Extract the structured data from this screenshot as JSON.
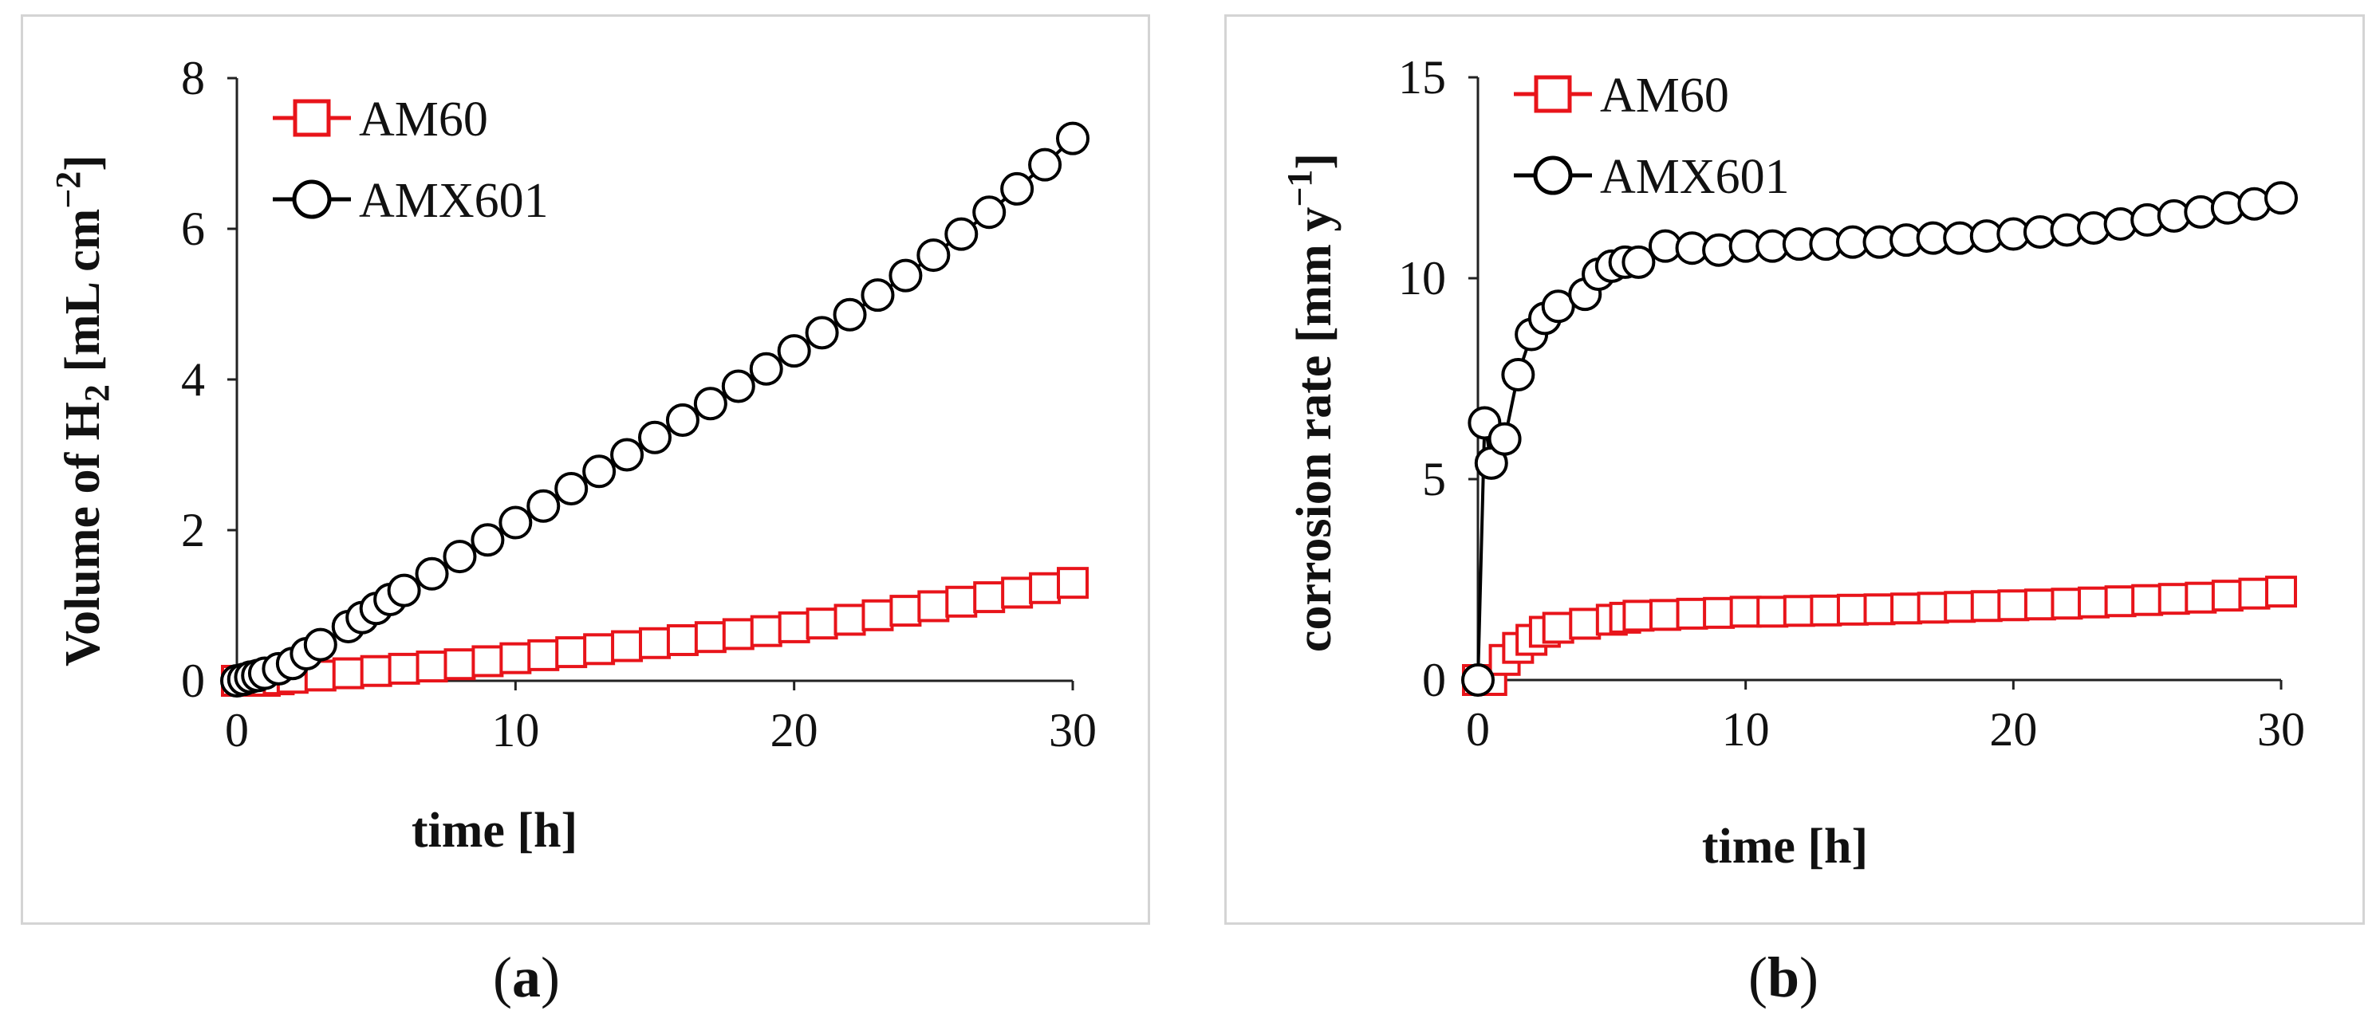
{
  "panels": [
    {
      "label_open": "(",
      "label_letter": "a",
      "label_close": ")"
    },
    {
      "label_open": "(",
      "label_letter": "b",
      "label_close": ")"
    }
  ],
  "colors": {
    "AM60": "#e8141a",
    "AMX601": "#000000",
    "axis": "#222222",
    "frame": "#d4d4d4"
  },
  "chart_data": [
    {
      "type": "scatter",
      "title": "",
      "xlabel": "time [h]",
      "ylabel_parts": [
        "Volume of H",
        "2",
        " [mL cm",
        "−2",
        "]"
      ],
      "xlim": [
        0,
        30
      ],
      "ylim": [
        0,
        8
      ],
      "xticks": [
        0,
        10,
        20,
        30
      ],
      "yticks": [
        0,
        2,
        4,
        6,
        8
      ],
      "legend": "top-left",
      "series": [
        {
          "name": "AM60",
          "marker": "square",
          "x": [
            0,
            0.5,
            1,
            1.5,
            2,
            3,
            4,
            5,
            6,
            7,
            8,
            9,
            10,
            11,
            12,
            13,
            14,
            15,
            16,
            17,
            18,
            19,
            20,
            21,
            22,
            23,
            24,
            25,
            26,
            27,
            28,
            29,
            30
          ],
          "y": [
            0,
            0,
            0,
            0.02,
            0.04,
            0.07,
            0.1,
            0.13,
            0.16,
            0.19,
            0.22,
            0.26,
            0.3,
            0.34,
            0.38,
            0.42,
            0.46,
            0.5,
            0.54,
            0.58,
            0.62,
            0.66,
            0.71,
            0.76,
            0.81,
            0.87,
            0.93,
            0.99,
            1.05,
            1.11,
            1.17,
            1.23,
            1.3
          ]
        },
        {
          "name": "AMX601",
          "marker": "circle",
          "x": [
            0,
            0.25,
            0.5,
            0.75,
            1,
            1.5,
            2,
            2.5,
            3,
            4,
            4.5,
            5,
            5.5,
            6,
            7,
            8,
            9,
            10,
            11,
            12,
            13,
            14,
            15,
            16,
            17,
            18,
            19,
            20,
            21,
            22,
            23,
            24,
            25,
            26,
            27,
            28,
            29,
            30
          ],
          "y": [
            0,
            0.02,
            0.05,
            0.07,
            0.1,
            0.16,
            0.23,
            0.36,
            0.48,
            0.72,
            0.84,
            0.96,
            1.08,
            1.2,
            1.42,
            1.65,
            1.87,
            2.1,
            2.32,
            2.55,
            2.78,
            3.0,
            3.23,
            3.46,
            3.68,
            3.91,
            4.14,
            4.38,
            4.62,
            4.86,
            5.12,
            5.38,
            5.65,
            5.93,
            6.22,
            6.53,
            6.85,
            7.2
          ]
        }
      ]
    },
    {
      "type": "line",
      "title": "",
      "xlabel": "time [h]",
      "ylabel_parts": [
        "corrosion rate [mm y",
        "−1",
        "]"
      ],
      "xlim": [
        0,
        30
      ],
      "ylim": [
        0,
        15
      ],
      "xticks": [
        0,
        10,
        20,
        30
      ],
      "yticks": [
        0,
        5,
        10,
        15
      ],
      "legend": "top-left",
      "series": [
        {
          "name": "AM60",
          "marker": "square",
          "x": [
            0,
            0.5,
            1,
            1.5,
            2,
            2.5,
            3,
            4,
            5,
            5.5,
            6,
            7,
            8,
            9,
            10,
            11,
            12,
            13,
            14,
            15,
            16,
            17,
            18,
            19,
            20,
            21,
            22,
            23,
            24,
            25,
            26,
            27,
            28,
            29,
            30
          ],
          "y": [
            0,
            0,
            0.5,
            0.8,
            1.0,
            1.2,
            1.3,
            1.4,
            1.5,
            1.55,
            1.6,
            1.62,
            1.65,
            1.67,
            1.7,
            1.7,
            1.72,
            1.73,
            1.75,
            1.76,
            1.78,
            1.8,
            1.82,
            1.84,
            1.86,
            1.88,
            1.9,
            1.93,
            1.96,
            1.99,
            2.02,
            2.05,
            2.1,
            2.15,
            2.2
          ]
        },
        {
          "name": "AMX601",
          "marker": "circle",
          "x": [
            0,
            0.25,
            0.5,
            1,
            1.5,
            2,
            2.5,
            3,
            4,
            4.5,
            5,
            5.5,
            6,
            7,
            8,
            9,
            10,
            11,
            12,
            13,
            14,
            15,
            16,
            17,
            18,
            19,
            20,
            21,
            22,
            23,
            24,
            25,
            26,
            27,
            28,
            29,
            30
          ],
          "y": [
            0,
            6.4,
            5.4,
            6.0,
            7.6,
            8.6,
            9.0,
            9.3,
            9.6,
            10.1,
            10.3,
            10.4,
            10.4,
            10.8,
            10.75,
            10.7,
            10.8,
            10.8,
            10.85,
            10.85,
            10.9,
            10.9,
            10.95,
            11.0,
            11.0,
            11.05,
            11.1,
            11.15,
            11.2,
            11.25,
            11.35,
            11.45,
            11.55,
            11.65,
            11.75,
            11.85,
            12.0
          ]
        }
      ]
    }
  ]
}
